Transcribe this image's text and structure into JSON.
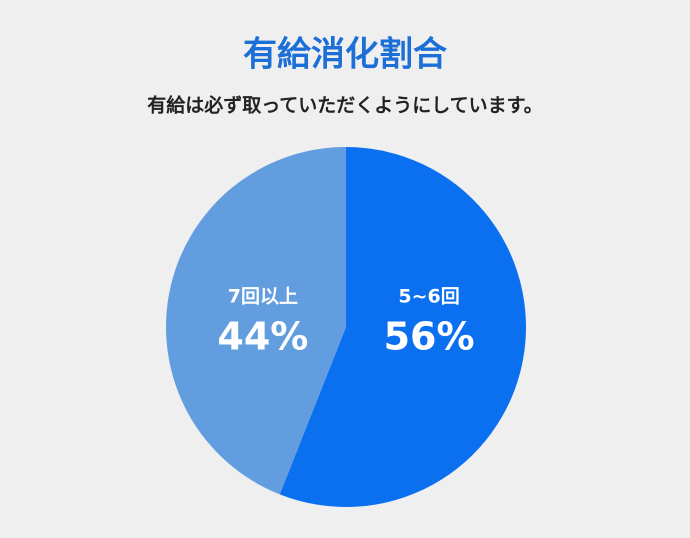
{
  "chart_data": {
    "type": "pie",
    "title": "有給消化割合",
    "subtitle": "有給は必ず取っていただくようにしています。",
    "categories": [
      "5~6回",
      "7回以上"
    ],
    "values": [
      56,
      44
    ],
    "value_labels": [
      "56%",
      "44%"
    ],
    "colors": [
      "#0b70f0",
      "#629ddf"
    ]
  }
}
